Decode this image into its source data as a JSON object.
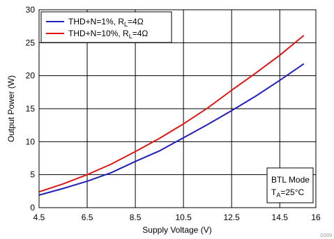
{
  "chart_data": {
    "type": "line",
    "title": "",
    "xlabel": "Supply Voltage (V)",
    "ylabel": "Output Power (W)",
    "xlim": [
      4.5,
      16
    ],
    "ylim": [
      0,
      30
    ],
    "x_ticks": [
      4.5,
      6.5,
      8.5,
      10.5,
      12.5,
      14.5,
      16
    ],
    "x_tick_labels": [
      "4.5",
      "6.5",
      "8.5",
      "10.5",
      "12.5",
      "14.5",
      "16"
    ],
    "y_ticks": [
      0,
      5,
      10,
      15,
      20,
      25,
      30
    ],
    "y_tick_labels": [
      "0",
      "5",
      "10",
      "15",
      "20",
      "25",
      "30"
    ],
    "grid": true,
    "legend_position": "top-left",
    "series": [
      {
        "name_prefix": "THD+N=1%, R",
        "name_sub": "L",
        "name_suffix": "=4Ω",
        "color": "#1f1fbf",
        "x": [
          4.5,
          5.5,
          6.5,
          7.5,
          8.5,
          9.5,
          10.5,
          11.5,
          12.5,
          13.5,
          14.5,
          15.5
        ],
        "values": [
          1.9,
          2.9,
          4.0,
          5.3,
          7.0,
          8.6,
          10.6,
          12.6,
          14.7,
          16.9,
          19.3,
          21.8
        ]
      },
      {
        "name_prefix": "THD+N=10%, R",
        "name_sub": "L",
        "name_suffix": "=4Ω",
        "color": "#e01414",
        "x": [
          4.5,
          5.5,
          6.5,
          7.5,
          8.5,
          9.5,
          10.5,
          11.5,
          12.5,
          13.5,
          14.5,
          15.5
        ],
        "values": [
          2.4,
          3.6,
          5.0,
          6.6,
          8.5,
          10.5,
          12.7,
          15.1,
          17.8,
          20.4,
          23.1,
          26.1
        ]
      }
    ],
    "annotation": {
      "line1": "BTL Mode",
      "line2_prefix": "T",
      "line2_sub": "A",
      "line2_suffix": "=25°C"
    },
    "figure_code": "D009"
  }
}
